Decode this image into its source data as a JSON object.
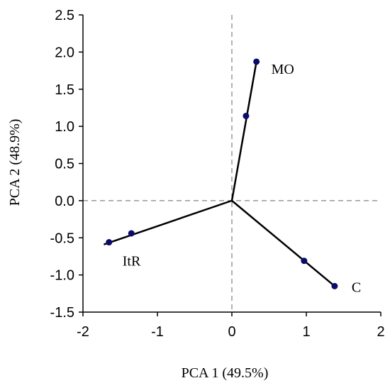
{
  "chart_data": {
    "type": "scatter",
    "xlabel": "PCA 1 (49.5%)",
    "ylabel": "PCA 2 (48.9%)",
    "xlim": [
      -2,
      2
    ],
    "ylim": [
      -1.5,
      2.5
    ],
    "x_ticks": [
      -2,
      -1,
      0,
      1,
      2
    ],
    "x_tick_labels": [
      "-2",
      "-1",
      "0",
      "1",
      "2"
    ],
    "y_ticks": [
      -1.5,
      -1.0,
      -0.5,
      0.0,
      0.5,
      1.0,
      1.5,
      2.0,
      2.5
    ],
    "y_tick_labels": [
      "-1.5",
      "-1.0",
      "-0.5",
      "0.0",
      "0.5",
      "1.0",
      "1.5",
      "2.0",
      "2.5"
    ],
    "grid": false,
    "reference_lines": [
      {
        "axis": "x",
        "value": 0,
        "style": "dashed"
      },
      {
        "axis": "y",
        "value": 0,
        "style": "dashed"
      }
    ],
    "vectors": [
      {
        "label": "MO",
        "end": [
          0.33,
          1.87
        ],
        "points": [
          {
            "x": 0.19,
            "y": 1.14
          },
          {
            "x": 0.33,
            "y": 1.87
          }
        ]
      },
      {
        "label": "C",
        "end": [
          1.38,
          -1.15
        ],
        "points": [
          {
            "x": 0.97,
            "y": -0.81
          },
          {
            "x": 1.38,
            "y": -1.15
          }
        ]
      },
      {
        "label": "ItR",
        "end": [
          -1.72,
          -0.59
        ],
        "points": [
          {
            "x": -1.65,
            "y": -0.56
          },
          {
            "x": -1.35,
            "y": -0.44
          }
        ]
      }
    ],
    "colors": {
      "marker": "#0b0b6b",
      "line": "#000000",
      "axis": "#000000",
      "reference": "#666666"
    }
  }
}
